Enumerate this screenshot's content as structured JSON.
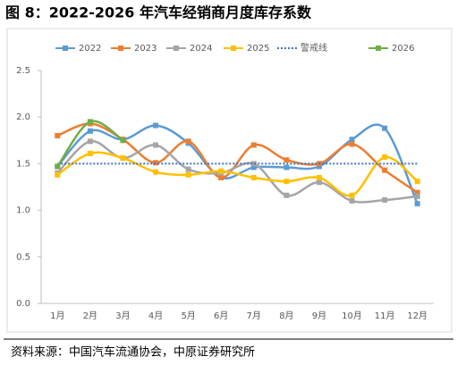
{
  "chart_data": {
    "type": "line",
    "title": "图 8：2022-2026 年汽车经销商月度库存系数",
    "source": "资料来源：中国汽车流通协会，中原证券研究所",
    "categories": [
      "1月",
      "2月",
      "3月",
      "4月",
      "5月",
      "6月",
      "7月",
      "8月",
      "9月",
      "10月",
      "11月",
      "12月"
    ],
    "ylim": [
      0,
      2.5
    ],
    "yticks": [
      {
        "value": 0,
        "label": "0.0"
      },
      0.5,
      {
        "value": 1,
        "label": "1.0"
      },
      1.5,
      {
        "value": 2,
        "label": "2.0"
      },
      2.5
    ],
    "series": [
      {
        "name": "2022",
        "color": "#5b9bd5",
        "values": [
          1.47,
          1.85,
          1.76,
          1.91,
          1.72,
          1.35,
          1.46,
          1.46,
          1.47,
          1.76,
          1.88,
          1.07
        ]
      },
      {
        "name": "2023",
        "color": "#ed7d31",
        "values": [
          1.8,
          1.93,
          1.76,
          1.51,
          1.74,
          1.35,
          1.7,
          1.54,
          1.5,
          1.71,
          1.43,
          1.19
        ]
      },
      {
        "name": "2024",
        "color": "#a5a5a5",
        "values": [
          1.4,
          1.74,
          1.56,
          1.7,
          1.44,
          1.4,
          1.5,
          1.16,
          1.3,
          1.1,
          1.11,
          1.15
        ]
      },
      {
        "name": "2025",
        "color": "#ffc000",
        "values": [
          1.38,
          1.61,
          1.56,
          1.41,
          1.38,
          1.42,
          1.35,
          1.31,
          1.35,
          1.16,
          1.57,
          1.31
        ]
      },
      {
        "name": "警戒线",
        "color": "#4472c4",
        "style": "dotted",
        "values": [
          1.5,
          1.5,
          1.5,
          1.5,
          1.5,
          1.5,
          1.5,
          1.5,
          1.5,
          1.5,
          1.5,
          1.5
        ]
      },
      {
        "name": "2026",
        "color": "#70ad47",
        "values": [
          1.47,
          1.95,
          1.75,
          null,
          null,
          null,
          null,
          null,
          null,
          null,
          null,
          null
        ]
      }
    ]
  }
}
